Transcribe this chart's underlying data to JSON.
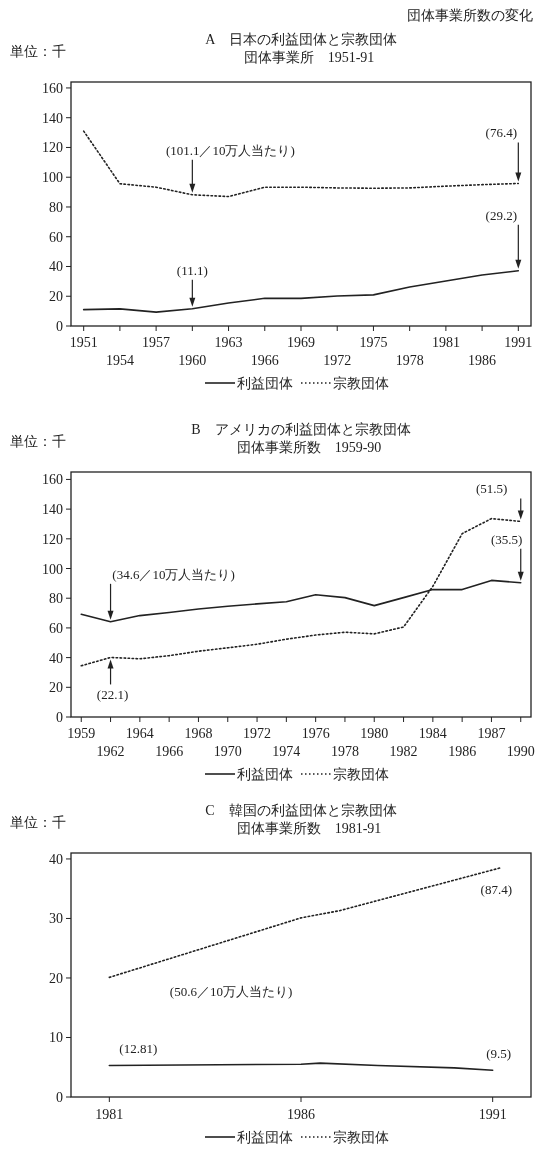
{
  "chart_data": [
    {
      "type": "line",
      "title": "A　日本の利益団体と宗教団体",
      "subtitle": "団体事業所　1951-91",
      "ylabel": "単位：千",
      "categories": [
        "1951",
        "1954",
        "1957",
        "1960",
        "1963",
        "1966",
        "1969",
        "1972",
        "1975",
        "1978",
        "1981",
        "1986",
        "1991"
      ],
      "series": [
        {
          "name": "利益団体",
          "color": "#222222",
          "line_style": "solid",
          "values": [
            11,
            11.5,
            9.3,
            11.6,
            15.5,
            18.6,
            18.6,
            20.2,
            20.9,
            26.2,
            30.2,
            34.3,
            37.1
          ]
        },
        {
          "name": "宗教団体",
          "color": "#222222",
          "line_style": "dotted",
          "values": [
            131,
            95.6,
            93.3,
            88.2,
            87,
            93.3,
            93.3,
            92.8,
            92.6,
            92.8,
            94,
            95,
            95.8
          ]
        }
      ],
      "ylim": [
        0,
        164
      ],
      "yticks": [
        0,
        20,
        40,
        60,
        80,
        100,
        120,
        140,
        160
      ],
      "legend": "bottom",
      "annotations": [
        "団体事業所数の変化",
        {
          "text": "(101.1／10万人当たり)",
          "x": "1960",
          "y": 88.2
        },
        {
          "text": "(76.4)",
          "x": "1991",
          "y": 95.8
        },
        {
          "text": "(11.1)",
          "x": "1960",
          "y": 11.6
        },
        {
          "text": "(29.2)",
          "x": "1991",
          "y": 37.1
        }
      ]
    },
    {
      "type": "line",
      "title": "B　アメリカの利益団体と宗教団体",
      "subtitle": "団体事業所数　1959-90",
      "ylabel": "単位：千",
      "categories": [
        "1959",
        "1962",
        "1964",
        "1966",
        "1968",
        "1970",
        "1972",
        "1974",
        "1976",
        "1978",
        "1980",
        "1982",
        "1984",
        "1986",
        "1987",
        "1990"
      ],
      "series": [
        {
          "name": "利益団体",
          "color": "#222222",
          "line_style": "solid",
          "values": [
            69.2,
            64.1,
            68.3,
            70.4,
            72.7,
            74.6,
            76.2,
            77.6,
            82.3,
            80.4,
            75,
            80.4,
            85.8,
            85.8,
            92,
            90.4
          ]
        },
        {
          "name": "宗教団体",
          "color": "#222222",
          "line_style": "dotted",
          "values": [
            34.5,
            40.1,
            39.2,
            41.3,
            44.3,
            46.6,
            49,
            52.4,
            55.2,
            57.1,
            56,
            60.6,
            88,
            123.5,
            133.6,
            131.7
          ]
        }
      ],
      "ylim": [
        0,
        165
      ],
      "yticks": [
        0,
        20,
        40,
        60,
        80,
        100,
        120,
        140,
        160
      ],
      "legend": "bottom",
      "annotations": [
        {
          "text": "(51.5)",
          "x": "1990",
          "y": 131.7
        },
        {
          "text": "(35.5)",
          "x": "1990",
          "y": 90.4
        },
        {
          "text": "(34.6／10万人当たり)",
          "x": "1962",
          "y": 64.1
        },
        {
          "text": "(22.1)",
          "x": "1962",
          "y": 40.1
        }
      ]
    },
    {
      "type": "line",
      "title": "C　韓国の利益団体と宗教団体",
      "subtitle": "団体事業所数　1981-91",
      "ylabel": "単位：千",
      "series": [
        {
          "name": "利益団体",
          "color": "#222222",
          "line_style": "solid",
          "x": [
            1981,
            1986,
            1986.5,
            1988,
            1990,
            1991
          ],
          "values": [
            5.3,
            5.5,
            5.7,
            5.3,
            4.9,
            4.5
          ]
        },
        {
          "name": "宗教団体",
          "color": "#222222",
          "line_style": "dotted",
          "x": [
            1981,
            1986,
            1987,
            1991.2
          ],
          "values": [
            20.1,
            30.1,
            31.3,
            38.5
          ]
        }
      ],
      "xlim": [
        1980,
        1992
      ],
      "xticks": [
        1981,
        1986,
        1991
      ],
      "ylim": [
        0,
        41
      ],
      "yticks": [
        0,
        10,
        20,
        30,
        40
      ],
      "legend": "bottom",
      "annotations": [
        "(50.6／10万人当たり)",
        {
          "text": "(87.4)",
          "x": 1991.2,
          "y": 38.5
        },
        {
          "text": "(12.81)",
          "x": 1981,
          "y": 5.3
        },
        {
          "text": "(9.5)",
          "x": 1991,
          "y": 4.5
        }
      ]
    }
  ]
}
